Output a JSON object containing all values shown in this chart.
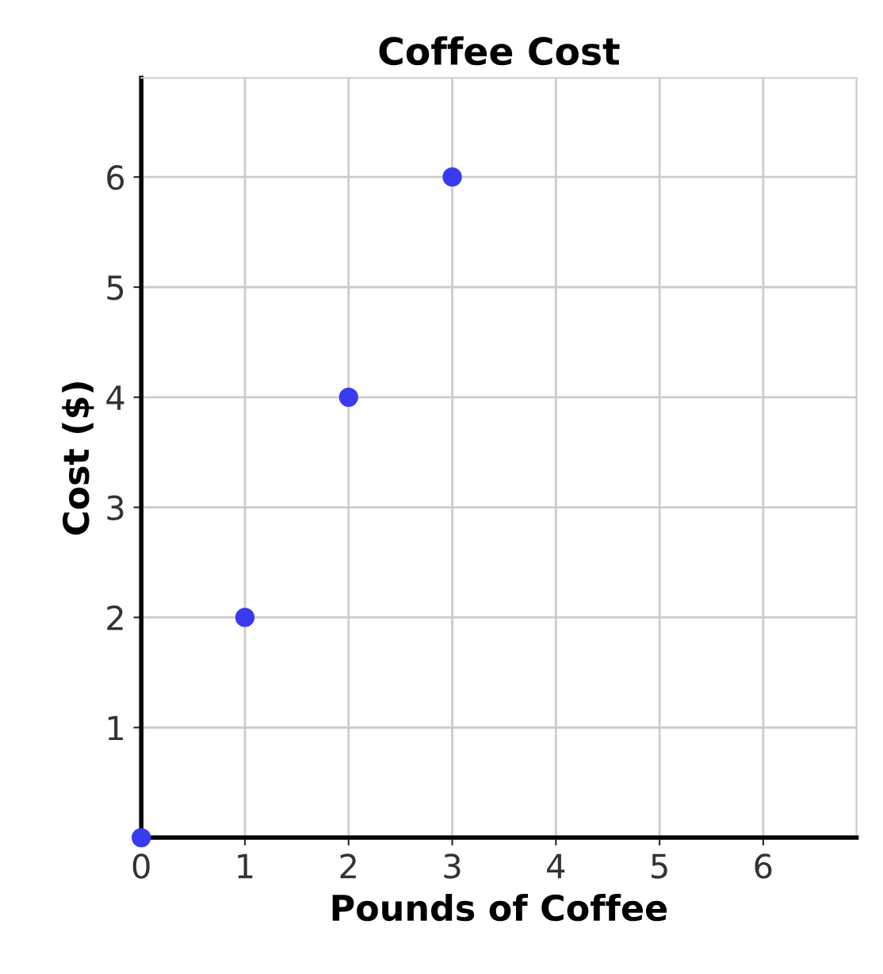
{
  "chart_data": {
    "type": "scatter",
    "title": "Coffee Cost",
    "xlabel": "Pounds of Coffee",
    "ylabel": "Cost ($)",
    "x": [
      0,
      1,
      2,
      3
    ],
    "series": [
      {
        "color": "#3a3af0",
        "values": [
          0,
          2,
          4,
          6
        ]
      }
    ],
    "xlim": [
      0,
      6.9
    ],
    "ylim": [
      0,
      6.9
    ],
    "xticks": [
      0,
      1,
      2,
      3,
      4,
      5,
      6
    ],
    "yticks": [
      1,
      2,
      3,
      4,
      5,
      6
    ],
    "grid": true,
    "marker": "circle"
  }
}
